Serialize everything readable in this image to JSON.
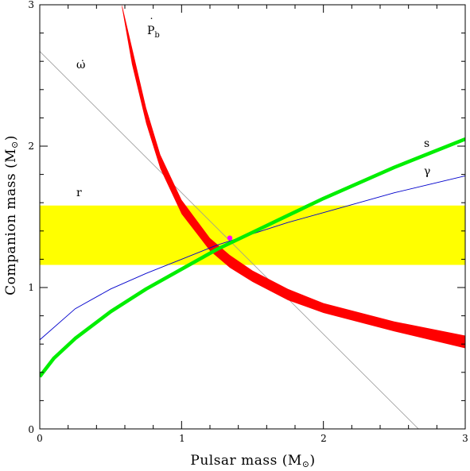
{
  "chart_data": {
    "type": "line",
    "title": "",
    "xlabel_main": "Pulsar mass (M",
    "xlabel_sym": "⊙",
    "xlabel_close": ")",
    "ylabel_main": "Companion mass (M",
    "ylabel_sym": "⊙",
    "ylabel_close": ")",
    "xlim": [
      0,
      3
    ],
    "ylim": [
      0,
      3
    ],
    "x_ticks": [
      0,
      1,
      2,
      3
    ],
    "y_ticks": [
      0,
      1,
      2,
      3
    ],
    "x_tick_labels": [
      "0",
      "1",
      "2",
      "3"
    ],
    "y_tick_labels": [
      "0",
      "1",
      "2",
      "3"
    ],
    "grid": false,
    "labels": {
      "pbdot_main": "P",
      "pbdot_dot": "˙",
      "pbdot_sub": "b",
      "omegadot": "ω̇",
      "s": "s",
      "gamma": "γ",
      "r": "r"
    },
    "colors": {
      "pbdot": "#ff0000",
      "s": "#00ee00",
      "gamma": "#0000cc",
      "omegadot": "#999999",
      "r_band": "#ffff00",
      "solution": "#ff00ff"
    },
    "r_band": {
      "y_low": 1.16,
      "y_high": 1.58
    },
    "omegadot_line": {
      "x": [
        0,
        2.67
      ],
      "y": [
        2.67,
        0
      ]
    },
    "pbdot_band": {
      "x": [
        0.58,
        0.65,
        0.75,
        0.85,
        1.0,
        1.2,
        1.34,
        1.5,
        1.75,
        2.0,
        2.5,
        3.0
      ],
      "y_upper": [
        3.0,
        2.7,
        2.27,
        1.94,
        1.62,
        1.35,
        1.23,
        1.12,
        0.99,
        0.89,
        0.76,
        0.66
      ],
      "y_lower": [
        2.98,
        2.58,
        2.16,
        1.84,
        1.52,
        1.26,
        1.14,
        1.04,
        0.91,
        0.82,
        0.69,
        0.57
      ]
    },
    "s_curve": {
      "x": [
        0,
        0.1,
        0.25,
        0.5,
        0.75,
        1.0,
        1.25,
        1.5,
        1.75,
        2.0,
        2.25,
        2.5,
        2.75,
        3.0
      ],
      "y": [
        0.37,
        0.5,
        0.64,
        0.83,
        0.99,
        1.13,
        1.27,
        1.39,
        1.51,
        1.63,
        1.74,
        1.85,
        1.95,
        2.05
      ]
    },
    "gamma_curve": {
      "x": [
        0,
        0.25,
        0.5,
        0.75,
        1.0,
        1.25,
        1.5,
        1.75,
        2.0,
        2.25,
        2.5,
        2.75,
        3.0
      ],
      "y": [
        0.63,
        0.85,
        0.99,
        1.1,
        1.2,
        1.3,
        1.38,
        1.46,
        1.53,
        1.6,
        1.67,
        1.73,
        1.79
      ]
    },
    "solution_point": {
      "x": 1.34,
      "y": 1.35
    }
  }
}
